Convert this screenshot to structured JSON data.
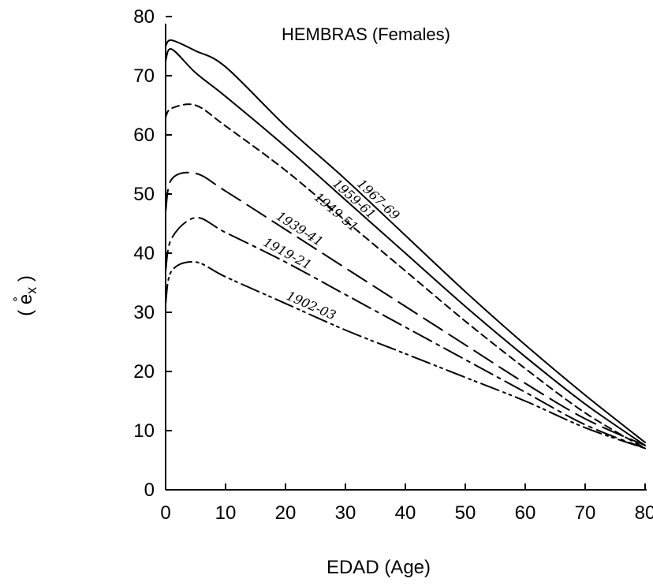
{
  "chart_data": {
    "type": "line",
    "title": "HEMBRAS (Females)",
    "xlabel": "EDAD (Age)",
    "ylabel": "( e̊x )",
    "ylabel_main": "e̊",
    "ylabel_sub": "x",
    "xlim": [
      0,
      80
    ],
    "ylim": [
      0,
      80
    ],
    "x_ticks": [
      "0",
      "10",
      "20",
      "30",
      "40",
      "50",
      "60",
      "70",
      "80"
    ],
    "y_ticks": [
      "0",
      "10",
      "20",
      "30",
      "40",
      "50",
      "60",
      "70",
      "80"
    ],
    "grid": false,
    "legend": "none (series labels written along the curves)",
    "x": [
      0,
      1,
      5,
      10,
      20,
      30,
      40,
      50,
      60,
      70,
      80
    ],
    "series": [
      {
        "name": "1967-69",
        "style": "solid",
        "values": [
          75.0,
          76.0,
          74.2,
          71.5,
          61.5,
          52.5,
          43.0,
          33.5,
          24.5,
          16.0,
          8.0
        ]
      },
      {
        "name": "1959-61",
        "style": "solid",
        "values": [
          72.5,
          74.5,
          70.5,
          66.5,
          58.0,
          49.0,
          40.0,
          31.0,
          22.5,
          14.5,
          7.5
        ]
      },
      {
        "name": "1949-51",
        "style": "short-dash",
        "values": [
          63.0,
          64.5,
          65.0,
          61.5,
          54.0,
          45.5,
          37.0,
          28.5,
          20.5,
          13.0,
          7.0
        ]
      },
      {
        "name": "1939-41",
        "style": "long-dash",
        "values": [
          47.0,
          52.5,
          53.5,
          50.5,
          44.0,
          37.5,
          31.0,
          24.5,
          18.0,
          12.0,
          7.5
        ]
      },
      {
        "name": "1919-21",
        "style": "dash-dot",
        "values": [
          37.0,
          42.5,
          46.0,
          43.5,
          38.5,
          33.0,
          27.5,
          22.0,
          16.5,
          11.0,
          7.0
        ]
      },
      {
        "name": "1902-03",
        "style": "dash-dot-dot",
        "values": [
          31.5,
          37.0,
          38.5,
          36.0,
          31.5,
          27.0,
          23.0,
          19.0,
          15.0,
          10.5,
          7.0
        ]
      }
    ]
  }
}
